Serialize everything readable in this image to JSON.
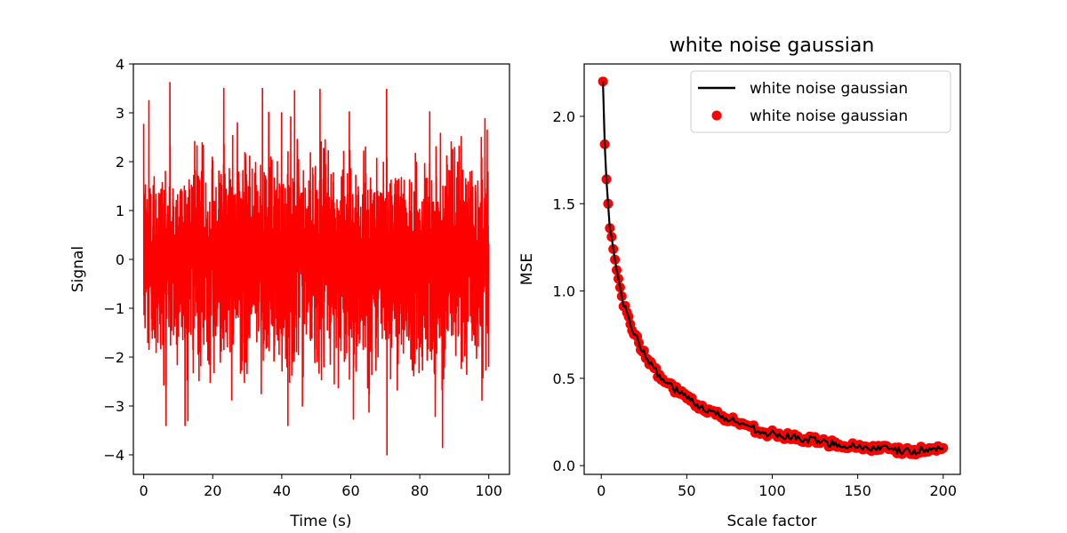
{
  "chart_data": [
    {
      "type": "line",
      "title": "",
      "xlabel": "Time (s)",
      "ylabel": "Signal",
      "xlim": [
        -3,
        106
      ],
      "ylim": [
        -4.4,
        4.0
      ],
      "xticks": [
        0,
        20,
        40,
        60,
        80,
        100
      ],
      "yticks": [
        -4,
        -3,
        -2,
        -1,
        0,
        1,
        2,
        3,
        4
      ],
      "grid": false,
      "series": [
        {
          "color": "#ff0000",
          "signal": {
            "t_start": 0,
            "t_end": 100,
            "n_points": 3000,
            "mean": 0,
            "std": 1,
            "max": 3.62,
            "min": -4.0
          },
          "peaks": [
            {
              "x": 1.5,
              "y": 3.25
            },
            {
              "x": 7.6,
              "y": 3.62
            },
            {
              "x": 23.2,
              "y": 3.5
            },
            {
              "x": 34.4,
              "y": 3.5
            },
            {
              "x": 43.7,
              "y": 3.45
            },
            {
              "x": 51.1,
              "y": 3.48
            },
            {
              "x": 70.4,
              "y": 3.48
            },
            {
              "x": 70.5,
              "y": -4.0
            },
            {
              "x": 86.6,
              "y": -3.85
            },
            {
              "x": 60.8,
              "y": -3.27
            },
            {
              "x": 12.8,
              "y": -3.3
            },
            {
              "x": 98.9,
              "y": 2.88
            }
          ]
        }
      ]
    },
    {
      "type": "line",
      "title": "white noise gaussian",
      "xlabel": "Scale factor",
      "ylabel": "MSE",
      "xlim": [
        -10,
        210
      ],
      "ylim": [
        -0.05,
        2.3
      ],
      "xticks": [
        0,
        50,
        100,
        150,
        200
      ],
      "yticks": [
        0.0,
        0.5,
        1.0,
        1.5,
        2.0
      ],
      "ytick_labels": [
        "0.0",
        "0.5",
        "1.0",
        "1.5",
        "2.0"
      ],
      "grid": false,
      "legend_position": "top-right",
      "series": [
        {
          "name": "white noise gaussian",
          "kind": "line",
          "color": "#000000"
        },
        {
          "name": "white noise gaussian",
          "kind": "scatter",
          "color": "#ff0000"
        }
      ],
      "x_start": 1,
      "x_end": 200,
      "mse_anchor_points": [
        {
          "x": 1,
          "y": 2.2
        },
        {
          "x": 2,
          "y": 1.84
        },
        {
          "x": 3,
          "y": 1.64
        },
        {
          "x": 4,
          "y": 1.5
        },
        {
          "x": 5,
          "y": 1.36
        },
        {
          "x": 6,
          "y": 1.31
        },
        {
          "x": 7,
          "y": 1.24
        },
        {
          "x": 8,
          "y": 1.18
        },
        {
          "x": 9,
          "y": 1.12
        },
        {
          "x": 10,
          "y": 1.07
        },
        {
          "x": 12,
          "y": 0.97
        },
        {
          "x": 15,
          "y": 0.86
        },
        {
          "x": 20,
          "y": 0.74
        },
        {
          "x": 25,
          "y": 0.64
        },
        {
          "x": 30,
          "y": 0.56
        },
        {
          "x": 40,
          "y": 0.46
        },
        {
          "x": 50,
          "y": 0.39
        },
        {
          "x": 60,
          "y": 0.33
        },
        {
          "x": 70,
          "y": 0.28
        },
        {
          "x": 80,
          "y": 0.25
        },
        {
          "x": 90,
          "y": 0.21
        },
        {
          "x": 100,
          "y": 0.18
        },
        {
          "x": 120,
          "y": 0.15
        },
        {
          "x": 140,
          "y": 0.12
        },
        {
          "x": 160,
          "y": 0.1
        },
        {
          "x": 180,
          "y": 0.08
        },
        {
          "x": 200,
          "y": 0.1
        }
      ]
    }
  ]
}
